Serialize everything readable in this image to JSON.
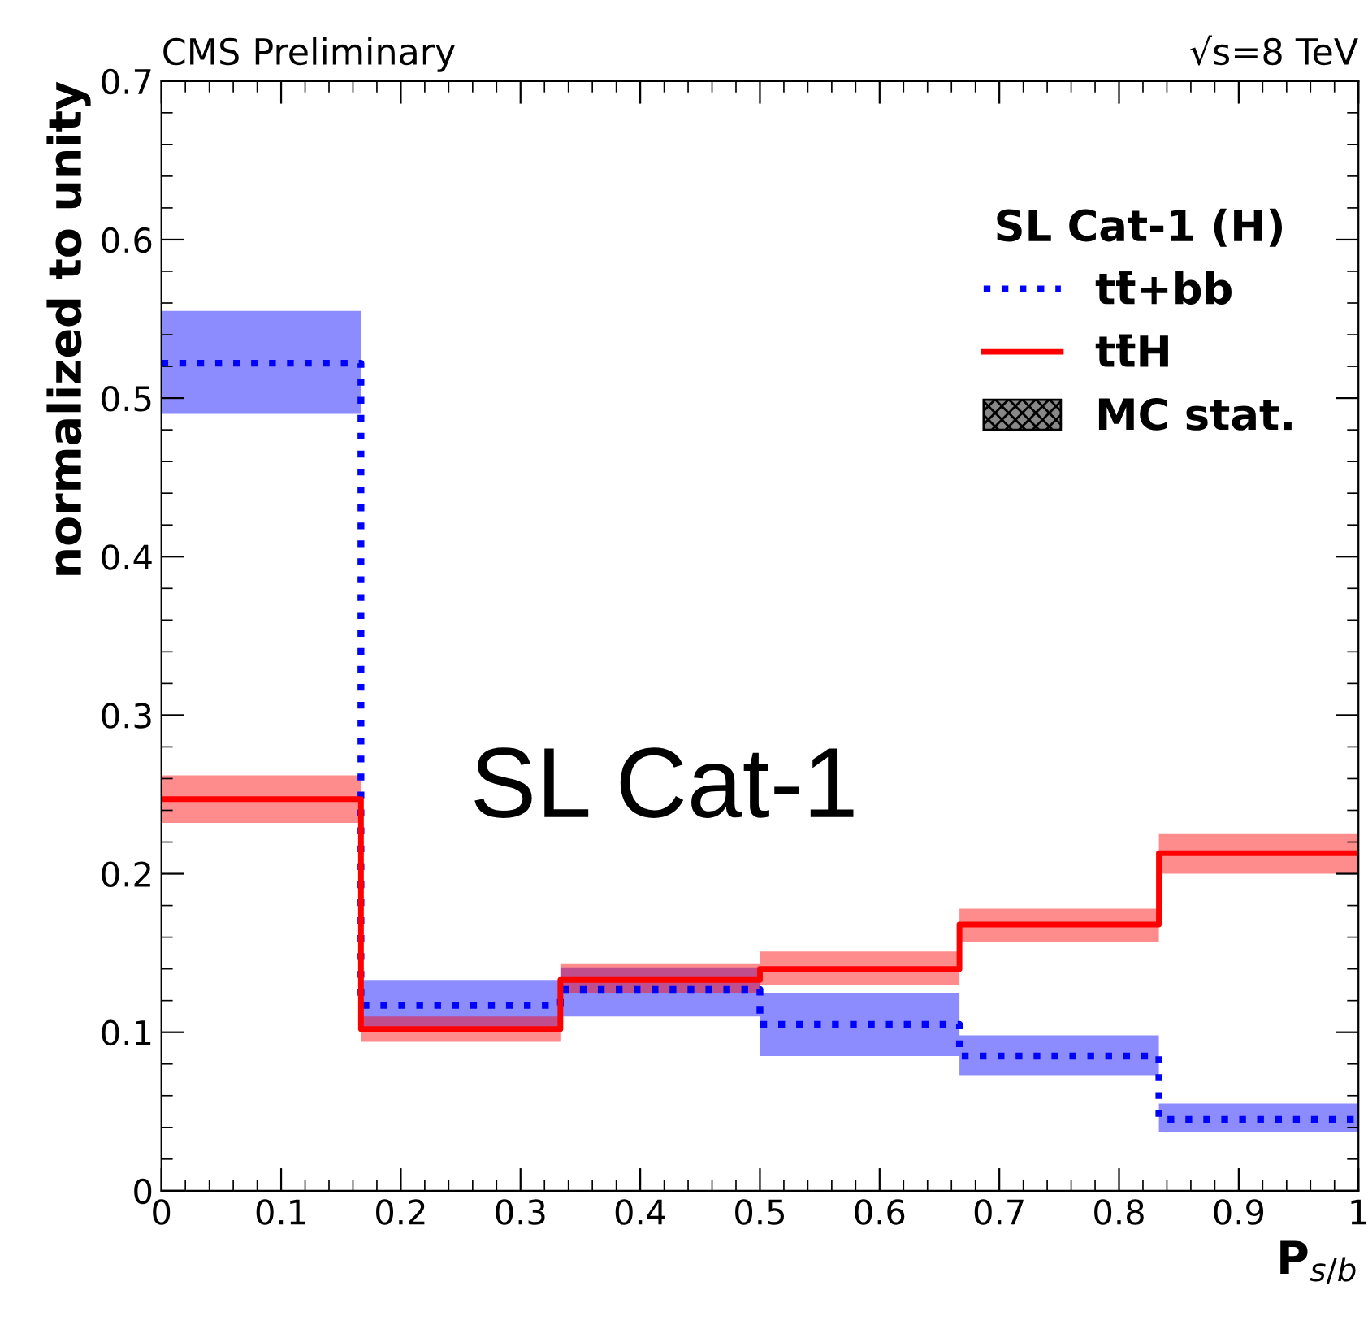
{
  "chart_data": {
    "type": "step",
    "xlabel": "P$_{s/b}$",
    "ylabel": "normalized to unity",
    "legend_title": "SL Cat-1 (H)",
    "legend": "top right",
    "grid": false,
    "x": [
      0,
      0.1667,
      0.3333,
      0.5,
      0.6667,
      0.8333,
      1
    ],
    "series": [
      {
        "name": "tt̄+bb",
        "color": "#0000ff",
        "line_style": "dotted",
        "values": [
          0.522,
          0.117,
          0.127,
          0.105,
          0.085,
          0.045,
          0.045
        ],
        "lower": [
          0.49,
          0.102,
          0.11,
          0.085,
          0.073,
          0.037,
          0.037
        ],
        "upper": [
          0.555,
          0.133,
          0.141,
          0.125,
          0.098,
          0.055,
          0.055
        ]
      },
      {
        "name": "tt̄H",
        "color": "#ff0000",
        "line_style": "solid",
        "values": [
          0.247,
          0.102,
          0.133,
          0.14,
          0.168,
          0.213,
          0.213
        ],
        "lower": [
          0.232,
          0.094,
          0.125,
          0.13,
          0.157,
          0.2,
          0.2
        ],
        "upper": [
          0.262,
          0.11,
          0.143,
          0.151,
          0.178,
          0.225,
          0.225
        ]
      }
    ],
    "xlim": [
      0,
      1
    ],
    "ylim": [
      0,
      0.7
    ],
    "xticks": [
      0,
      0.1,
      0.2,
      0.3,
      0.4,
      0.5,
      0.6,
      0.7,
      0.8,
      0.9,
      1
    ],
    "yticks": [
      0,
      0.1,
      0.2,
      0.3,
      0.4,
      0.5,
      0.6,
      0.7
    ],
    "annotations": [
      "CMS Preliminary",
      "√s=8 TeV",
      "SL Cat-1",
      "MC stat."
    ]
  }
}
